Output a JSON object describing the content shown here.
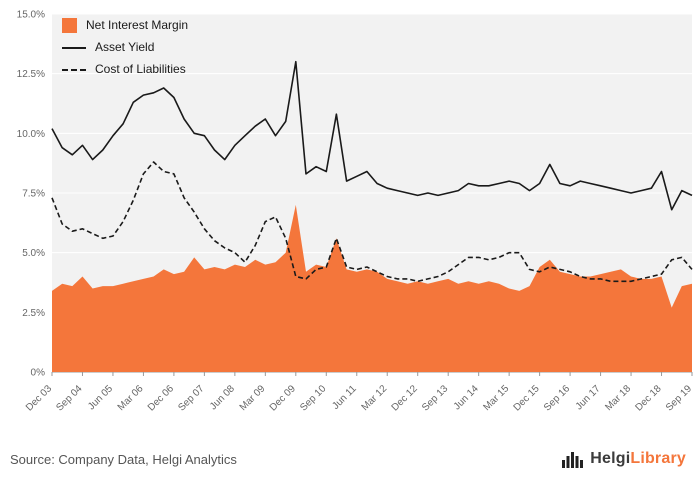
{
  "accent_color": "#f4763b",
  "chart_data": {
    "type": "combo",
    "title": "",
    "xlabel": "",
    "ylabel": "",
    "ylim": [
      0,
      15
    ],
    "yticks": [
      0,
      2.5,
      5,
      7.5,
      10,
      12.5,
      15
    ],
    "ytick_labels": [
      "0%",
      "2.5%",
      "5.0%",
      "7.5%",
      "10.0%",
      "12.5%",
      "15.0%"
    ],
    "xtick_every": 3,
    "grid": true,
    "legend_position": "top-left",
    "plot_bg": "#f2f2f2",
    "grid_color": "#ffffff",
    "categories": [
      "Dec 03",
      "Mar 04",
      "Jun 04",
      "Sep 04",
      "Dec 04",
      "Mar 05",
      "Jun 05",
      "Sep 05",
      "Dec 05",
      "Mar 06",
      "Jun 06",
      "Sep 06",
      "Dec 06",
      "Mar 07",
      "Jun 07",
      "Sep 07",
      "Dec 07",
      "Mar 08",
      "Jun 08",
      "Sep 08",
      "Dec 08",
      "Mar 09",
      "Jun 09",
      "Sep 09",
      "Dec 09",
      "Mar 10",
      "Jun 10",
      "Sep 10",
      "Dec 10",
      "Mar 11",
      "Jun 11",
      "Sep 11",
      "Dec 11",
      "Mar 12",
      "Jun 12",
      "Sep 12",
      "Dec 12",
      "Mar 13",
      "Jun 13",
      "Sep 13",
      "Dec 13",
      "Mar 14",
      "Jun 14",
      "Sep 14",
      "Dec 14",
      "Mar 15",
      "Jun 15",
      "Sep 15",
      "Dec 15",
      "Mar 16",
      "Jun 16",
      "Sep 16",
      "Dec 16",
      "Mar 17",
      "Jun 17",
      "Sep 17",
      "Dec 17",
      "Mar 18",
      "Jun 18",
      "Sep 18",
      "Dec 18",
      "Mar 19",
      "Jun 19",
      "Sep 19"
    ],
    "series": [
      {
        "name": "Net Interest Margin",
        "type": "area",
        "color": "#f4763b",
        "values": [
          3.4,
          3.7,
          3.6,
          4.0,
          3.5,
          3.6,
          3.6,
          3.7,
          3.8,
          3.9,
          4.0,
          4.3,
          4.1,
          4.2,
          4.8,
          4.3,
          4.4,
          4.3,
          4.5,
          4.4,
          4.7,
          4.5,
          4.6,
          5.0,
          7.0,
          4.2,
          4.5,
          4.4,
          5.6,
          4.3,
          4.2,
          4.3,
          4.2,
          3.9,
          3.8,
          3.7,
          3.8,
          3.7,
          3.8,
          3.9,
          3.7,
          3.8,
          3.7,
          3.8,
          3.7,
          3.5,
          3.4,
          3.6,
          4.4,
          4.7,
          4.2,
          4.1,
          4.0,
          4.0,
          4.1,
          4.2,
          4.3,
          4.0,
          3.9,
          3.9,
          4.0,
          2.7,
          3.6,
          3.7
        ]
      },
      {
        "name": "Asset Yield",
        "type": "line",
        "style": "solid",
        "color": "#1a1a1a",
        "values": [
          10.2,
          9.4,
          9.1,
          9.5,
          8.9,
          9.3,
          9.9,
          10.4,
          11.3,
          11.6,
          11.7,
          11.9,
          11.5,
          10.6,
          10.0,
          9.9,
          9.3,
          8.9,
          9.5,
          9.9,
          10.3,
          10.6,
          9.9,
          10.5,
          13.0,
          8.3,
          8.6,
          8.4,
          10.8,
          8.0,
          8.2,
          8.4,
          7.9,
          7.7,
          7.6,
          7.5,
          7.4,
          7.5,
          7.4,
          7.5,
          7.6,
          7.9,
          7.8,
          7.8,
          7.9,
          8.0,
          7.9,
          7.6,
          7.9,
          8.7,
          7.9,
          7.8,
          8.0,
          7.9,
          7.8,
          7.7,
          7.6,
          7.5,
          7.6,
          7.7,
          8.4,
          6.8,
          7.6,
          7.4
        ]
      },
      {
        "name": "Cost of Liabilities",
        "type": "line",
        "style": "dashed",
        "color": "#1a1a1a",
        "values": [
          7.3,
          6.2,
          5.9,
          6.0,
          5.8,
          5.6,
          5.7,
          6.3,
          7.2,
          8.3,
          8.8,
          8.4,
          8.3,
          7.3,
          6.7,
          6.0,
          5.5,
          5.2,
          5.0,
          4.6,
          5.3,
          6.3,
          6.5,
          5.6,
          4.0,
          3.9,
          4.3,
          4.4,
          5.6,
          4.4,
          4.3,
          4.4,
          4.2,
          4.0,
          3.9,
          3.9,
          3.8,
          3.9,
          4.0,
          4.2,
          4.5,
          4.8,
          4.8,
          4.7,
          4.8,
          5.0,
          5.0,
          4.3,
          4.2,
          4.4,
          4.3,
          4.2,
          4.0,
          3.9,
          3.9,
          3.8,
          3.8,
          3.8,
          3.9,
          4.0,
          4.1,
          4.7,
          4.8,
          4.3
        ]
      }
    ]
  },
  "footer": {
    "source": "Source: Company Data, Helgi Analytics",
    "logo_helgi": "Helgi",
    "logo_library": "Library"
  }
}
